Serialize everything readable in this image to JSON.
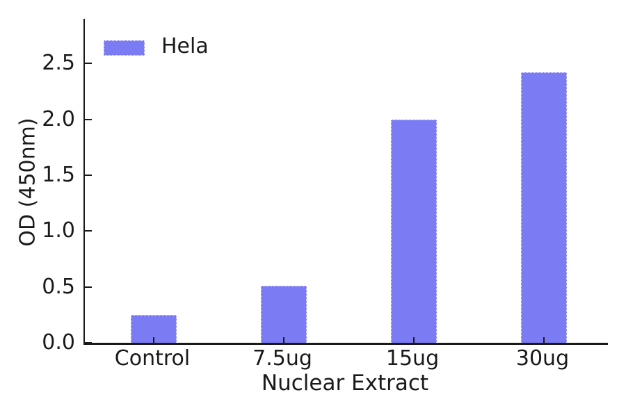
{
  "chart_data": {
    "type": "bar",
    "title": "",
    "categories": [
      "Control",
      "7.5ug",
      "15ug",
      "30ug"
    ],
    "series": [
      {
        "name": "Hela",
        "values": [
          0.25,
          0.51,
          2.0,
          2.42
        ],
        "color": "#7b7bf4"
      }
    ],
    "xlabel": "Nuclear Extract",
    "ylabel": "OD (450nm)",
    "ytick_labels": [
      "0.0",
      "0.5",
      "1.0",
      "1.5",
      "2.0",
      "2.5"
    ],
    "ytick_values": [
      0.0,
      0.5,
      1.0,
      1.5,
      2.0,
      2.5
    ],
    "ylim": [
      0,
      2.9
    ],
    "grid": false,
    "legend": {
      "position": "upper-left",
      "entries": [
        "Hela"
      ]
    },
    "colors": {
      "bar": "#7b7bf4",
      "axis": "#1a1a1a",
      "text": "#1a1a1a",
      "background": "#ffffff"
    }
  }
}
